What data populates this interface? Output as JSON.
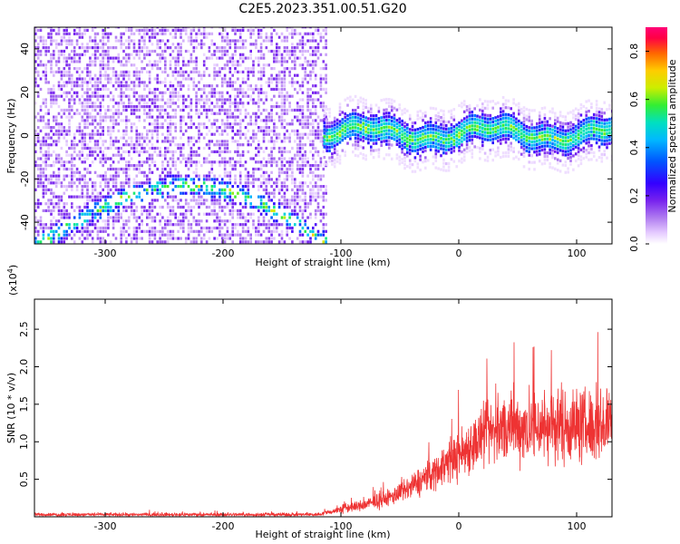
{
  "figure_title": "C2E5.2023.351.00.51.G20",
  "colors": {
    "snr_line": "#ee3333",
    "spectrum_palette": [
      "#ffffff",
      "#e6ccff",
      "#b07cf0",
      "#7722ee",
      "#3300ff",
      "#0055ff",
      "#00b8ff",
      "#00e0c0",
      "#33ee33",
      "#ccee00",
      "#ffcc00",
      "#ff6600",
      "#ff0044",
      "#ff0077"
    ]
  },
  "chart_data": [
    {
      "type": "heatmap",
      "xlabel": "Height of straight line (km)",
      "ylabel": "Frequency (Hz)",
      "xlim": [
        -360,
        130
      ],
      "ylim": [
        -50,
        50
      ],
      "xticks": [
        -300,
        -200,
        -100,
        0,
        100
      ],
      "yticks": [
        -40,
        -20,
        0,
        20,
        40
      ],
      "features": {
        "noise_region_x": [
          -360,
          -112
        ],
        "lower_arc_peak": {
          "x": -230,
          "y": -24
        },
        "lower_arc_endpoints": [
          {
            "x": -360,
            "y": -52
          },
          {
            "x": -120,
            "y": -48
          }
        ],
        "signal_band_x": [
          -115,
          130
        ],
        "signal_band_center_y": 0
      },
      "colorbar": {
        "label": "Normalized spectral amplitude",
        "range": [
          0.0,
          0.9
        ],
        "ticks": [
          "0.0",
          "0.2",
          "0.4",
          "0.6",
          "0.8"
        ]
      }
    },
    {
      "type": "line",
      "xlabel": "Height of straight line (km)",
      "ylabel": "SNR (10 * v/v)",
      "y_multiplier": "(x10",
      "y_multiplier_exp": "4",
      "y_multiplier_close": ")",
      "xlim": [
        -360,
        130
      ],
      "ylim": [
        0.0,
        2.9
      ],
      "xticks": [
        -300,
        -200,
        -100,
        0,
        100
      ],
      "yticks": [
        "0.5",
        "1.0",
        "1.5",
        "2.0",
        "2.5"
      ],
      "series": [
        {
          "x": [
            -360,
            -300,
            -200,
            -120,
            -105,
            -100,
            -95,
            -85,
            -75,
            -60,
            -45,
            -30,
            -20,
            -10,
            0,
            10,
            20,
            30,
            40,
            60,
            80,
            100,
            115,
            130
          ],
          "y": [
            0.03,
            0.03,
            0.03,
            0.03,
            0.08,
            0.1,
            0.12,
            0.14,
            0.18,
            0.25,
            0.35,
            0.5,
            0.6,
            0.72,
            0.82,
            0.95,
            1.05,
            1.15,
            1.18,
            1.2,
            1.22,
            1.22,
            1.2,
            1.25
          ],
          "spread": [
            0.03,
            0.03,
            0.03,
            0.03,
            0.05,
            0.1,
            0.1,
            0.1,
            0.12,
            0.15,
            0.2,
            0.28,
            0.32,
            0.38,
            0.45,
            0.5,
            0.55,
            0.6,
            0.62,
            0.65,
            0.68,
            0.68,
            0.65,
            0.62
          ]
        }
      ]
    }
  ]
}
